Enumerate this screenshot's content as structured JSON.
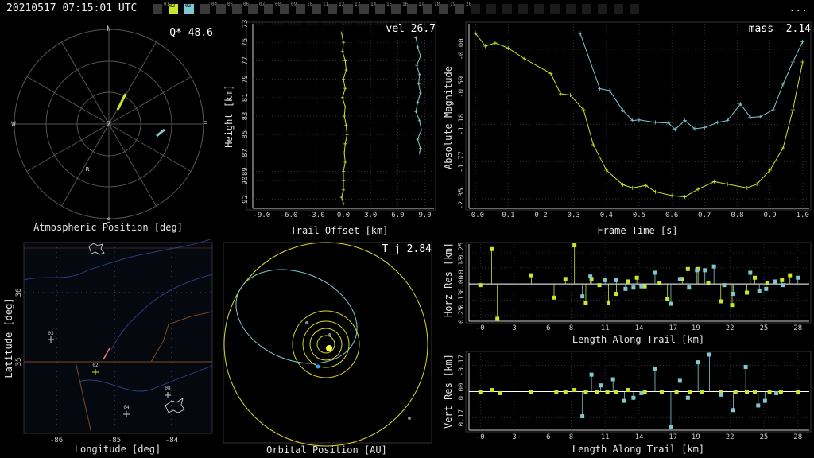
{
  "header": {
    "timestamp": "20210517 07:15:01 UTC",
    "menu_label": "...",
    "cameras": [
      {
        "id": "01",
        "state": "off"
      },
      {
        "id": "02",
        "state": "yellow"
      },
      {
        "id": "03",
        "state": "cyan"
      },
      {
        "id": "04",
        "state": "off"
      },
      {
        "id": "05",
        "state": "off"
      },
      {
        "id": "06",
        "state": "off"
      },
      {
        "id": "07",
        "state": "off"
      },
      {
        "id": "08",
        "state": "off"
      },
      {
        "id": "09",
        "state": "off"
      },
      {
        "id": "10",
        "state": "off"
      },
      {
        "id": "11",
        "state": "off"
      },
      {
        "id": "12",
        "state": "off"
      },
      {
        "id": "13",
        "state": "off"
      },
      {
        "id": "14",
        "state": "off"
      },
      {
        "id": "15",
        "state": "off"
      },
      {
        "id": "16",
        "state": "off"
      },
      {
        "id": "17",
        "state": "off"
      },
      {
        "id": "18",
        "state": "off"
      },
      {
        "id": "19",
        "state": "off"
      },
      {
        "id": "20",
        "state": "off"
      },
      {
        "id": "",
        "state": "blank"
      },
      {
        "id": "",
        "state": "blank"
      },
      {
        "id": "",
        "state": "blank"
      },
      {
        "id": "",
        "state": "blank"
      },
      {
        "id": "",
        "state": "blank"
      },
      {
        "id": "",
        "state": "blank"
      },
      {
        "id": "",
        "state": "blank"
      },
      {
        "id": "",
        "state": "blank"
      },
      {
        "id": "",
        "state": "blank"
      },
      {
        "id": "",
        "state": "blank"
      },
      {
        "id": "",
        "state": "blank"
      }
    ]
  },
  "colors": {
    "yellow": "#c8e62a",
    "cyan": "#7fc8cf",
    "axis": "#cfcfcf",
    "grid": "#555555",
    "orbit": "#d8d830"
  },
  "chart_data": [
    {
      "id": "atmospheric",
      "type": "polar",
      "xlabel": "Atmospheric Position [deg]",
      "annotation": "Q* 48.6",
      "compass": {
        "n": "N",
        "s": "S",
        "e": "E",
        "w": "W",
        "z": "Z"
      },
      "marker_label": "R"
    },
    {
      "id": "height",
      "type": "line",
      "xlabel": "Trail Offset [km]",
      "ylabel": "Height [km]",
      "annotation": "vel 26.7",
      "xticks": [
        "-9.0",
        "-6.0",
        "-3.0",
        "0.0",
        "3.0",
        "6.0",
        "9.0"
      ],
      "yticks": [
        "73",
        "75",
        "77",
        "79",
        "81",
        "83",
        "85",
        "87",
        "89",
        "90",
        "92"
      ],
      "xlim": [
        -10,
        10
      ],
      "ylim": [
        73,
        93
      ],
      "series": [
        {
          "color": "yellow",
          "points": [
            [
              -0.2,
              74
            ],
            [
              0,
              75
            ],
            [
              -0.1,
              76
            ],
            [
              0.2,
              77
            ],
            [
              0.3,
              78
            ],
            [
              0,
              79
            ],
            [
              0.2,
              80
            ],
            [
              -0.1,
              81
            ],
            [
              0.2,
              82
            ],
            [
              0.1,
              83
            ],
            [
              0.3,
              84
            ],
            [
              0.4,
              85
            ],
            [
              0.2,
              86
            ],
            [
              0.1,
              87
            ],
            [
              0.2,
              88
            ],
            [
              0,
              89
            ],
            [
              0,
              90
            ],
            [
              0,
              91
            ],
            [
              -0.2,
              91.8
            ],
            [
              0,
              92.5
            ]
          ]
        },
        {
          "color": "cyan",
          "points": [
            [
              8.0,
              74.5
            ],
            [
              8.2,
              75.5
            ],
            [
              8.5,
              76.5
            ],
            [
              8.1,
              77.5
            ],
            [
              8.4,
              78.5
            ],
            [
              8.3,
              79.5
            ],
            [
              8.5,
              80.5
            ],
            [
              8.2,
              81.5
            ],
            [
              8.0,
              82.5
            ],
            [
              8.4,
              83.5
            ],
            [
              8.6,
              84.5
            ],
            [
              8.2,
              85.5
            ],
            [
              8.5,
              86.5
            ],
            [
              8.4,
              87
            ]
          ]
        }
      ]
    },
    {
      "id": "magnitude",
      "type": "line",
      "xlabel": "Frame Time [s]",
      "ylabel": "Absolute Magnitude",
      "annotation": "mass -2.14",
      "xticks": [
        "-0.0",
        "0.1",
        "0.2",
        "0.3",
        "0.4",
        "0.5",
        "0.6",
        "0.7",
        "0.8",
        "0.9",
        "1.0"
      ],
      "yticks": [
        "-0.00",
        "-0.59",
        "-1.18",
        "-1.77",
        "-2.35"
      ],
      "xlim": [
        -0.02,
        1.02
      ],
      "ylim": [
        0.4,
        -2.5
      ],
      "series": [
        {
          "color": "yellow",
          "points": [
            [
              0,
              0.25
            ],
            [
              0.03,
              0.05
            ],
            [
              0.06,
              0.1
            ],
            [
              0.1,
              0.02
            ],
            [
              0.15,
              -0.15
            ],
            [
              0.23,
              -0.38
            ],
            [
              0.26,
              -0.7
            ],
            [
              0.29,
              -0.72
            ],
            [
              0.33,
              -0.95
            ],
            [
              0.36,
              -1.5
            ],
            [
              0.4,
              -1.9
            ],
            [
              0.45,
              -2.13
            ],
            [
              0.48,
              -2.18
            ],
            [
              0.52,
              -2.14
            ],
            [
              0.55,
              -2.24
            ],
            [
              0.6,
              -2.3
            ],
            [
              0.64,
              -2.32
            ],
            [
              0.68,
              -2.2
            ],
            [
              0.73,
              -2.08
            ],
            [
              0.77,
              -2.12
            ],
            [
              0.83,
              -2.18
            ],
            [
              0.86,
              -2.12
            ],
            [
              0.9,
              -1.9
            ],
            [
              0.94,
              -1.55
            ],
            [
              0.97,
              -0.95
            ],
            [
              1.0,
              -0.2
            ]
          ]
        },
        {
          "color": "cyan",
          "points": [
            [
              0.32,
              0.25
            ],
            [
              0.38,
              -0.62
            ],
            [
              0.41,
              -0.65
            ],
            [
              0.45,
              -0.96
            ],
            [
              0.48,
              -1.12
            ],
            [
              0.5,
              -1.11
            ],
            [
              0.55,
              -1.15
            ],
            [
              0.59,
              -1.16
            ],
            [
              0.61,
              -1.26
            ],
            [
              0.64,
              -1.12
            ],
            [
              0.67,
              -1.25
            ],
            [
              0.7,
              -1.23
            ],
            [
              0.74,
              -1.15
            ],
            [
              0.77,
              -1.12
            ],
            [
              0.81,
              -0.86
            ],
            [
              0.84,
              -1.07
            ],
            [
              0.87,
              -1.06
            ],
            [
              0.91,
              -0.95
            ],
            [
              0.94,
              -0.55
            ],
            [
              0.97,
              -0.2
            ],
            [
              1.0,
              0.12
            ]
          ]
        }
      ]
    },
    {
      "id": "map",
      "type": "map",
      "xlabel": "Longitude [deg]",
      "ylabel": "Latitude [deg]",
      "xticks": [
        "-86",
        "-85",
        "-84"
      ],
      "yticks": [
        "35",
        "36"
      ],
      "stations": [
        {
          "label": "03"
        },
        {
          "label": "02"
        },
        {
          "label": "04"
        },
        {
          "label": "08"
        }
      ]
    },
    {
      "id": "orbit",
      "type": "orbit",
      "xlabel": "Orbital Position [AU]",
      "annotation": "T_j 2.84"
    },
    {
      "id": "horz_res",
      "type": "scatter",
      "xlabel": "Length Along Trail [km]",
      "ylabel": "Horz Res [km]",
      "xticks": [
        "-0",
        "3",
        "6",
        "8",
        "11",
        "14",
        "17",
        "19",
        "22",
        "25",
        "28"
      ],
      "yticks": [
        "0.25",
        "0.13",
        "0.00",
        "-0.13",
        "-0.25"
      ],
      "xlim": [
        -1,
        29
      ],
      "ylim": [
        -0.32,
        0.3
      ],
      "series": [
        {
          "color": "yellow",
          "points": [
            [
              0,
              0.01
            ],
            [
              1,
              -0.28
            ],
            [
              1.5,
              0.28
            ],
            [
              4.5,
              -0.07
            ],
            [
              6.5,
              0.11
            ],
            [
              7.5,
              -0.04
            ],
            [
              8.3,
              -0.31
            ],
            [
              9.3,
              0.15
            ],
            [
              9.8,
              -0.04
            ],
            [
              10.5,
              0.01
            ],
            [
              11.3,
              0.15
            ],
            [
              12,
              0.08
            ],
            [
              13,
              -0.02
            ],
            [
              13.8,
              -0.05
            ],
            [
              14.5,
              0.02
            ],
            [
              15.8,
              -0.01
            ],
            [
              16.5,
              0.12
            ],
            [
              17.8,
              -0.04
            ],
            [
              18.3,
              -0.12
            ],
            [
              19.2,
              -0.12
            ],
            [
              20.1,
              -0.01
            ],
            [
              21.2,
              0.14
            ],
            [
              22.2,
              0.17
            ],
            [
              23.5,
              0.07
            ],
            [
              24.2,
              -0.05
            ],
            [
              25.3,
              -0.01
            ],
            [
              26.6,
              -0.03
            ],
            [
              27.3,
              -0.07
            ]
          ]
        },
        {
          "color": "cyan",
          "points": [
            [
              9,
              0.1
            ],
            [
              9.7,
              -0.06
            ],
            [
              11,
              -0.03
            ],
            [
              12,
              -0.03
            ],
            [
              12.8,
              0.04
            ],
            [
              13.5,
              0.03
            ],
            [
              14.2,
              0.02
            ],
            [
              15.4,
              -0.09
            ],
            [
              16.8,
              0.16
            ],
            [
              17.6,
              -0.04
            ],
            [
              18.4,
              0.03
            ],
            [
              19.1,
              -0.11
            ],
            [
              19.8,
              -0.11
            ],
            [
              20.6,
              -0.14
            ],
            [
              21.5,
              0.01
            ],
            [
              22.3,
              0.08
            ],
            [
              23.8,
              -0.09
            ],
            [
              24.6,
              0.06
            ],
            [
              25.2,
              0.04
            ],
            [
              26,
              -0.02
            ],
            [
              26.7,
              0.01
            ],
            [
              28,
              -0.05
            ]
          ]
        }
      ]
    },
    {
      "id": "vert_res",
      "type": "scatter",
      "xlabel": "Length Along Trail [km]",
      "ylabel": "Vert Res [km]",
      "xticks": [
        "-0",
        "3",
        "6",
        "8",
        "11",
        "14",
        "17",
        "19",
        "22",
        "25",
        "28"
      ],
      "yticks": [
        "0.17",
        "0.00",
        "-0.17"
      ],
      "xlim": [
        -1,
        29
      ],
      "ylim": [
        -0.25,
        0.25
      ],
      "series": [
        {
          "color": "yellow",
          "points": [
            [
              0,
              0
            ],
            [
              1,
              -0.01
            ],
            [
              1.7,
              0.01
            ],
            [
              4.5,
              0
            ],
            [
              6.7,
              0
            ],
            [
              7.5,
              0
            ],
            [
              8.3,
              -0.01
            ],
            [
              9.3,
              0
            ],
            [
              10.3,
              0
            ],
            [
              11.2,
              0
            ],
            [
              12,
              0
            ],
            [
              13,
              -0.01
            ],
            [
              14.5,
              0
            ],
            [
              16,
              0
            ],
            [
              17.3,
              0
            ],
            [
              18.5,
              0
            ],
            [
              19.5,
              0
            ],
            [
              21.2,
              0
            ],
            [
              22.5,
              0
            ],
            [
              23.5,
              0
            ],
            [
              24.2,
              0
            ],
            [
              25.5,
              0
            ],
            [
              26.5,
              0
            ],
            [
              28,
              0
            ]
          ]
        },
        {
          "color": "cyan",
          "points": [
            [
              9,
              0.16
            ],
            [
              9.8,
              -0.11
            ],
            [
              10.6,
              -0.04
            ],
            [
              11.7,
              -0.08
            ],
            [
              12.7,
              0.06
            ],
            [
              13.5,
              0.04
            ],
            [
              14.2,
              0.01
            ],
            [
              15.4,
              -0.15
            ],
            [
              16.8,
              0.23
            ],
            [
              17.6,
              -0.07
            ],
            [
              18.3,
              0.04
            ],
            [
              19.2,
              -0.19
            ],
            [
              20.2,
              -0.24
            ],
            [
              21.2,
              0.02
            ],
            [
              22.3,
              0.12
            ],
            [
              23.4,
              -0.16
            ],
            [
              24.5,
              0.09
            ],
            [
              25.1,
              0.06
            ],
            [
              26.1,
              0.01
            ]
          ]
        }
      ]
    }
  ]
}
